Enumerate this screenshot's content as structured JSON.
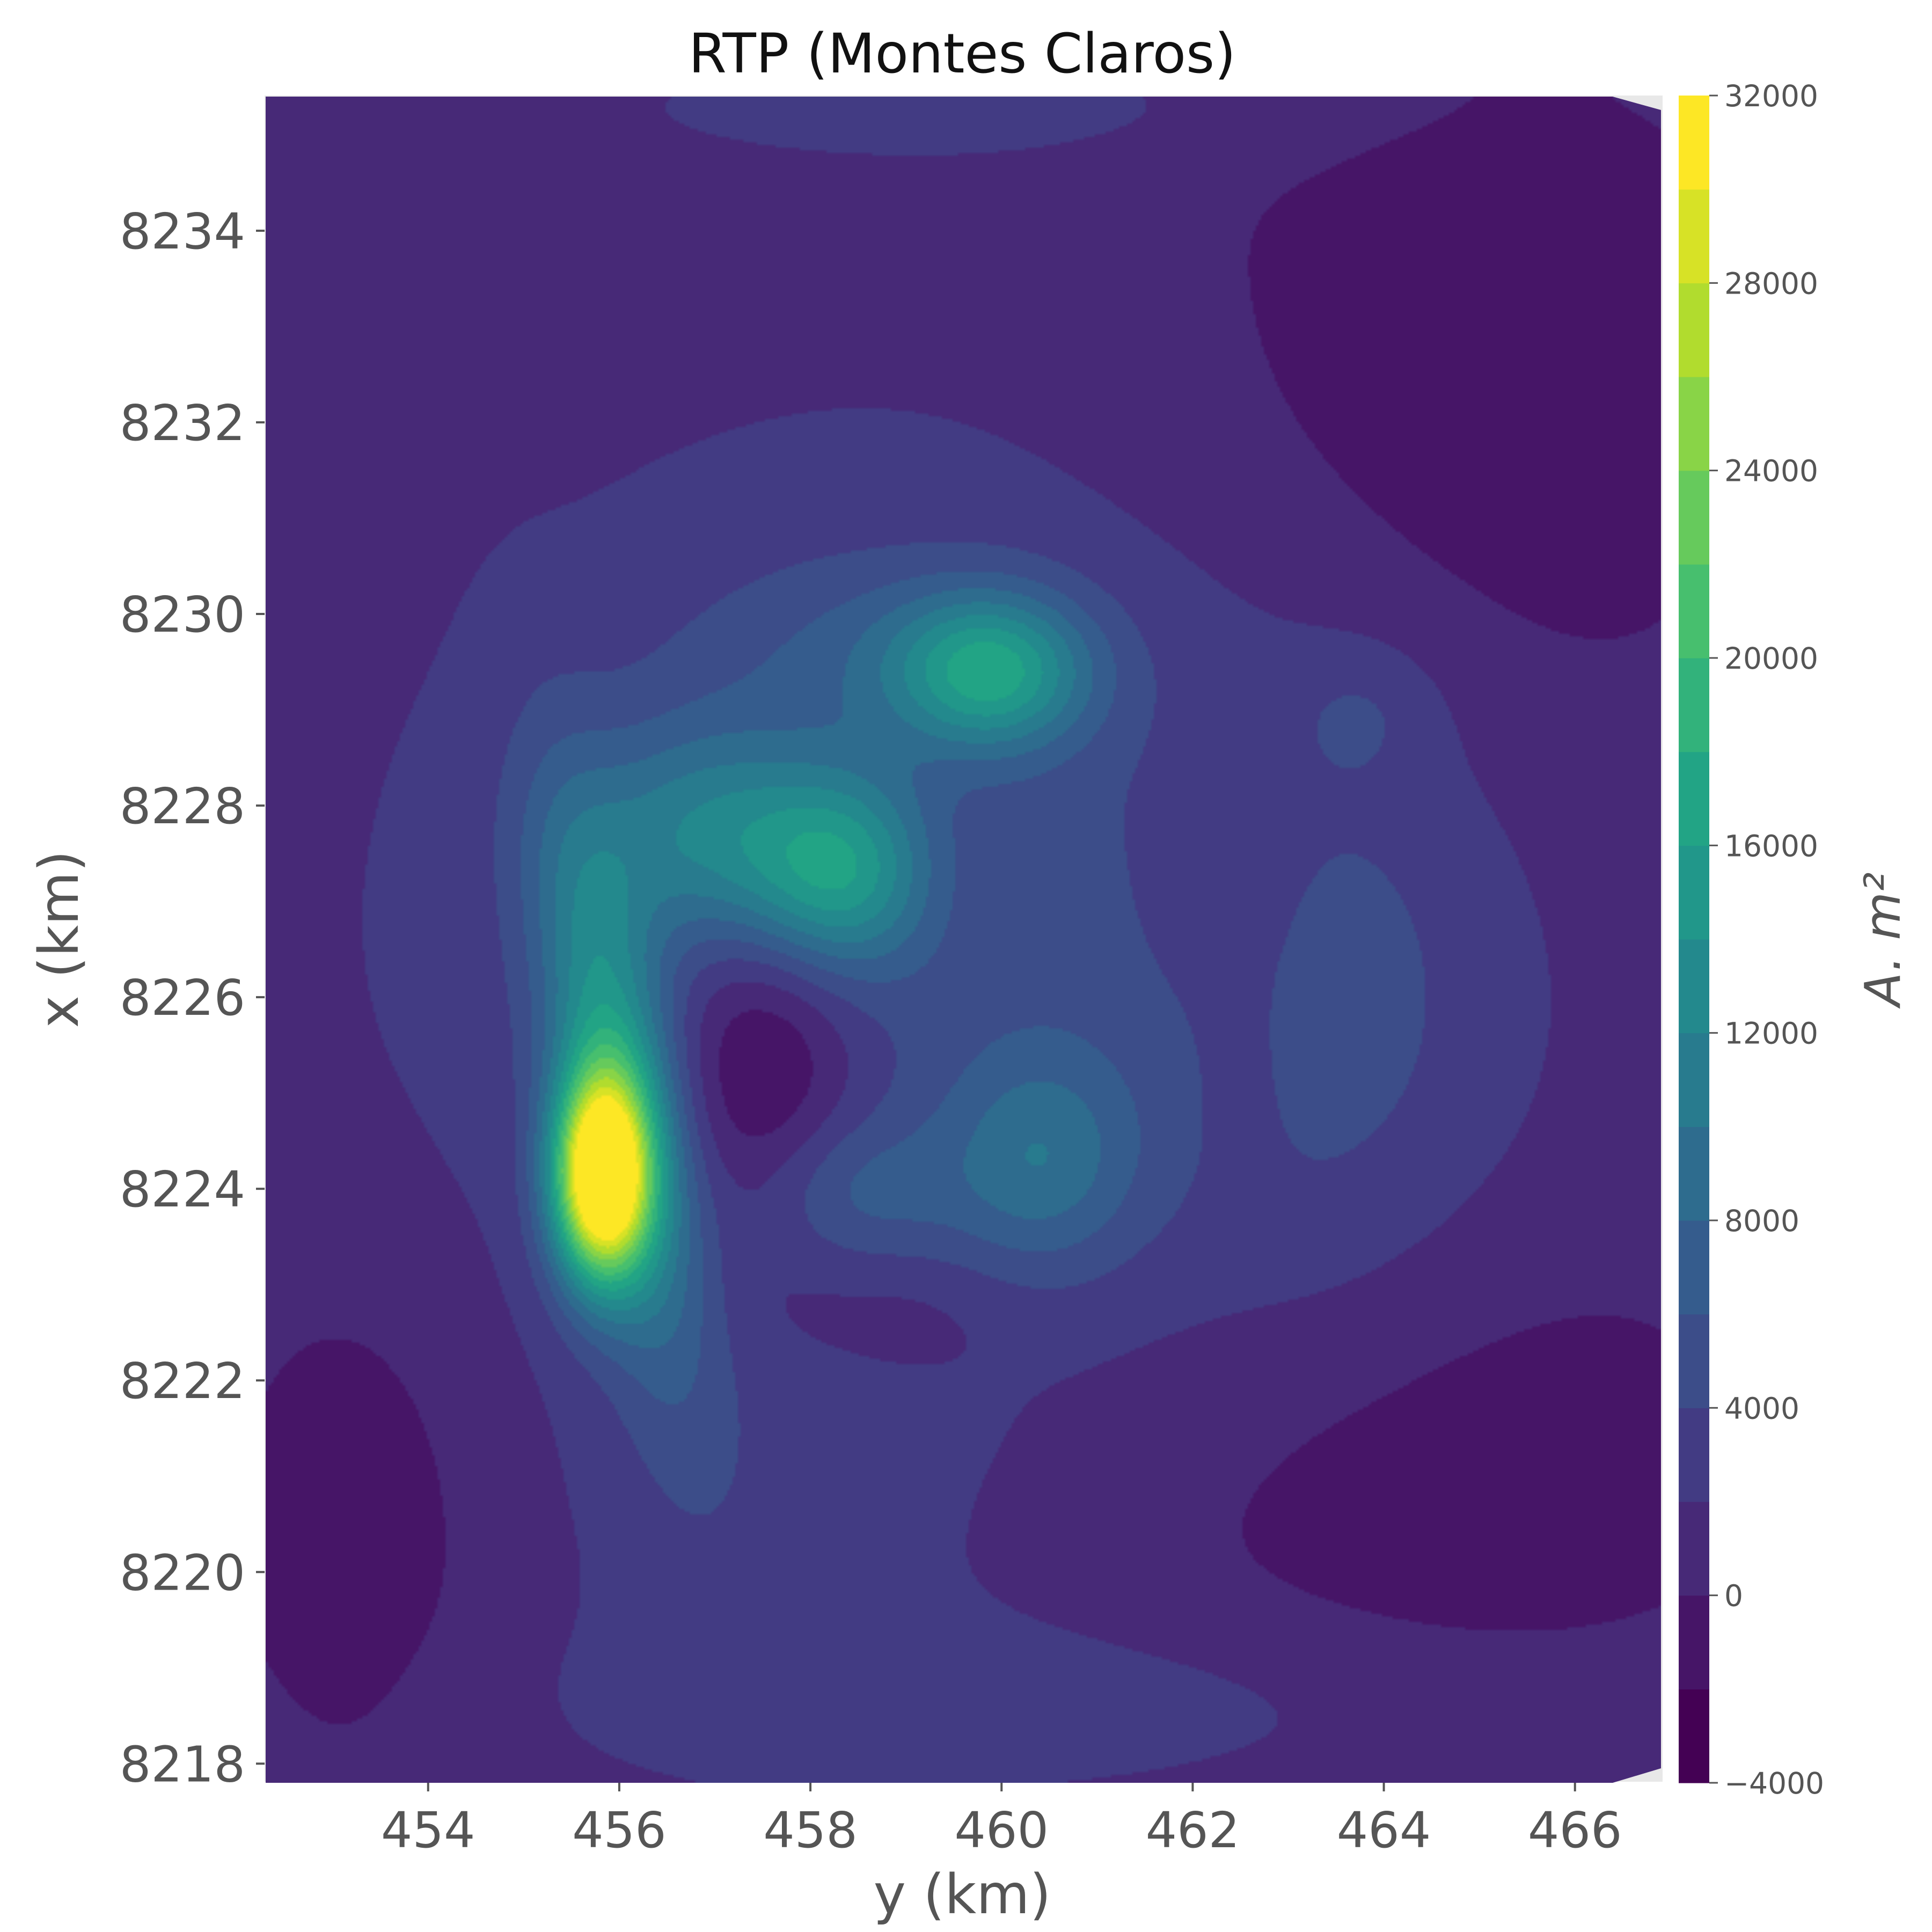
{
  "chart_data": {
    "type": "contour",
    "title": "RTP (Montes Claros)",
    "xlabel": "y (km)",
    "ylabel": "x (km)",
    "xlim": [
      452.3,
      466.9
    ],
    "ylim": [
      8217.8,
      8235.4
    ],
    "x_ticks": [
      454,
      456,
      458,
      460,
      462,
      464,
      466
    ],
    "y_ticks": [
      8218,
      8220,
      8222,
      8224,
      8226,
      8228,
      8230,
      8232,
      8234
    ],
    "grid": false,
    "colormap": "viridis",
    "colorbar": {
      "label": "A. m²",
      "range": [
        -4000,
        32000
      ],
      "levels": [
        -4000,
        -2000,
        0,
        2000,
        4000,
        6000,
        8000,
        10000,
        12000,
        14000,
        16000,
        18000,
        20000,
        22000,
        24000,
        26000,
        28000,
        30000,
        32000
      ],
      "tick_values": [
        -4000,
        0,
        4000,
        8000,
        12000,
        16000,
        20000,
        24000,
        28000,
        32000
      ],
      "tick_labels": [
        "−4000",
        "0",
        "4000",
        "8000",
        "12000",
        "16000",
        "20000",
        "24000",
        "28000",
        "32000"
      ]
    },
    "background_value": 1000,
    "anomalies": [
      {
        "y": 455.8,
        "x": 8224.1,
        "value": 31000,
        "sy": 0.35,
        "sx": 0.75,
        "rot": 0
      },
      {
        "y": 456.0,
        "x": 8225.0,
        "value": 12000,
        "sy": 0.45,
        "sx": 2.0,
        "rot": 10
      },
      {
        "y": 456.9,
        "x": 8227.7,
        "value": 8000,
        "sy": 0.9,
        "sx": 0.8,
        "rot": 0
      },
      {
        "y": 458.3,
        "x": 8227.3,
        "value": 11000,
        "sy": 0.7,
        "sx": 0.7,
        "rot": 0
      },
      {
        "y": 459.9,
        "x": 8229.4,
        "value": 12000,
        "sy": 0.7,
        "sx": 0.55,
        "rot": 0
      },
      {
        "y": 458.8,
        "x": 8229.6,
        "value": 3000,
        "sy": 1.3,
        "sx": 0.7,
        "rot": 0
      },
      {
        "y": 460.4,
        "x": 8224.3,
        "value": 6000,
        "sy": 0.7,
        "sx": 0.8,
        "rot": 0
      },
      {
        "y": 458.4,
        "x": 8224.0,
        "value": 4000,
        "sy": 0.8,
        "sx": 0.55,
        "rot": 0
      },
      {
        "y": 457.5,
        "x": 8225.3,
        "value": -6000,
        "sy": 0.7,
        "sx": 1.3,
        "rot": 0
      },
      {
        "y": 458.6,
        "x": 8225.0,
        "value": -1000,
        "sy": 1.4,
        "sx": 2.0,
        "rot": 0
      },
      {
        "y": 458.9,
        "x": 8222.7,
        "value": -1500,
        "sy": 0.9,
        "sx": 0.5,
        "rot": 0
      },
      {
        "y": 462.3,
        "x": 8227.0,
        "value": -2000,
        "sy": 0.8,
        "sx": 1.2,
        "rot": 0
      },
      {
        "y": 463.8,
        "x": 8229.0,
        "value": 1800,
        "sy": 0.55,
        "sx": 0.5,
        "rot": 0
      },
      {
        "y": 462.5,
        "x": 8225.0,
        "value": -1000,
        "sy": 0.4,
        "sx": 0.9,
        "rot": 0
      },
      {
        "y": 459.4,
        "x": 8227.3,
        "value": -1500,
        "sy": 0.5,
        "sx": 0.7,
        "rot": 0
      },
      {
        "y": 459.0,
        "x": 8226.5,
        "value": 4500,
        "sy": 3.3,
        "sx": 3.3,
        "rot": 0
      },
      {
        "y": 463.5,
        "x": 8226.0,
        "value": 2800,
        "sy": 1.4,
        "sx": 2.6,
        "rot": 0
      },
      {
        "y": 465.0,
        "x": 8232.5,
        "value": -2500,
        "sy": 2.2,
        "sx": 3.0,
        "rot": 0
      },
      {
        "y": 464.5,
        "x": 8221.0,
        "value": -2500,
        "sy": 2.5,
        "sx": 2.0,
        "rot": 0
      },
      {
        "y": 453.2,
        "x": 8220.5,
        "value": -2300,
        "sy": 1.0,
        "sx": 2.0,
        "rot": 0
      },
      {
        "y": 460.0,
        "x": 8235.3,
        "value": 1500,
        "sy": 3.5,
        "sx": 0.5,
        "rot": 0
      },
      {
        "y": 461.0,
        "x": 8218.6,
        "value": 2000,
        "sy": 4.0,
        "sx": 0.7,
        "rot": 0
      },
      {
        "y": 457.5,
        "x": 8220.5,
        "value": 1500,
        "sy": 1.5,
        "sx": 1.5,
        "rot": 0
      }
    ]
  }
}
